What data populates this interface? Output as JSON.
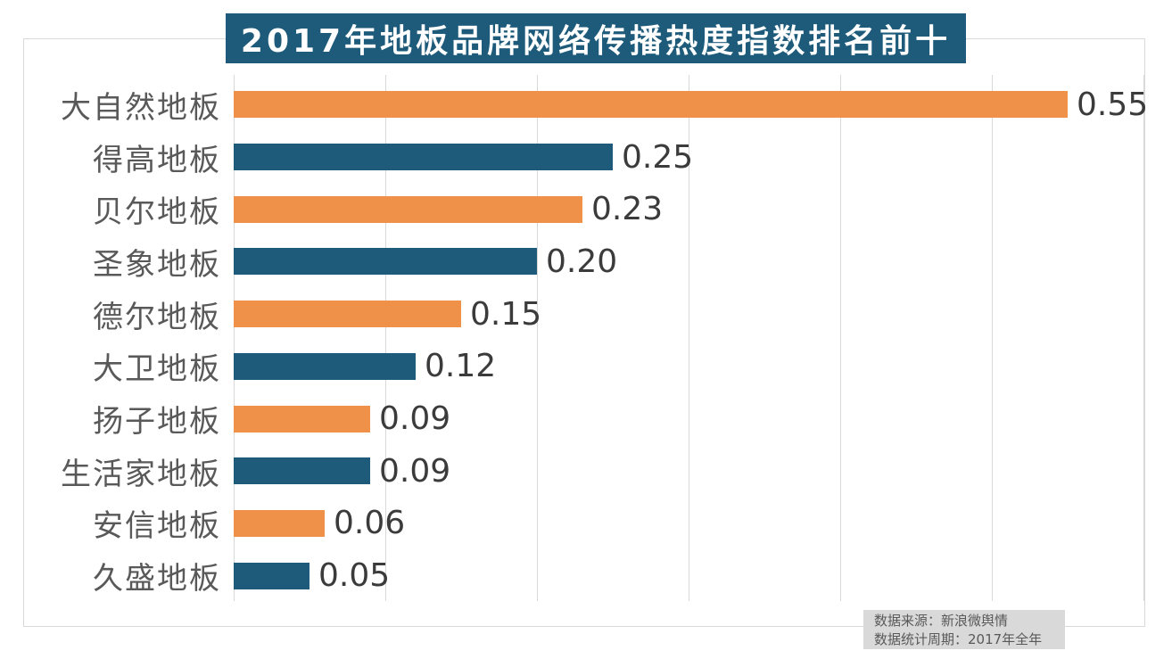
{
  "chart": {
    "title": "2017年地板品牌网络传播热度指数排名前十"
  },
  "chart_data": {
    "type": "bar",
    "orientation": "horizontal",
    "title": "2017年地板品牌网络传播热度指数排名前十",
    "categories": [
      "大自然地板",
      "得高地板",
      "贝尔地板",
      "圣象地板",
      "德尔地板",
      "大卫地板",
      "扬子地板",
      "生活家地板",
      "安信地板",
      "久盛地板"
    ],
    "values": [
      0.55,
      0.25,
      0.23,
      0.2,
      0.15,
      0.12,
      0.09,
      0.09,
      0.06,
      0.05
    ],
    "value_labels": [
      "0.55",
      "0.25",
      "0.23",
      "0.20",
      "0.15",
      "0.12",
      "0.09",
      "0.09",
      "0.06",
      "0.05"
    ],
    "xlabel": "",
    "ylabel": "",
    "xlim": [
      0,
      0.6
    ],
    "grid_step": 0.1,
    "grid": true,
    "legend": false,
    "bar_colors_alternating": [
      "#F0914A",
      "#1E5B7B"
    ]
  },
  "colors": {
    "title_bg": "#1E5B7B",
    "title_text": "#FFFFFF",
    "orange_bar": "#F0914A",
    "blue_bar": "#1E5B7B",
    "gridline": "#D9D9D9",
    "frame_border": "#D9D9D9",
    "category_text": "#595959",
    "value_text": "#3B3B3B",
    "footer_bg": "#D9D9D9",
    "footer_text": "#595959"
  },
  "footer": {
    "source": "数据来源：新浪微舆情",
    "period": "数据统计周期：2017年全年"
  }
}
